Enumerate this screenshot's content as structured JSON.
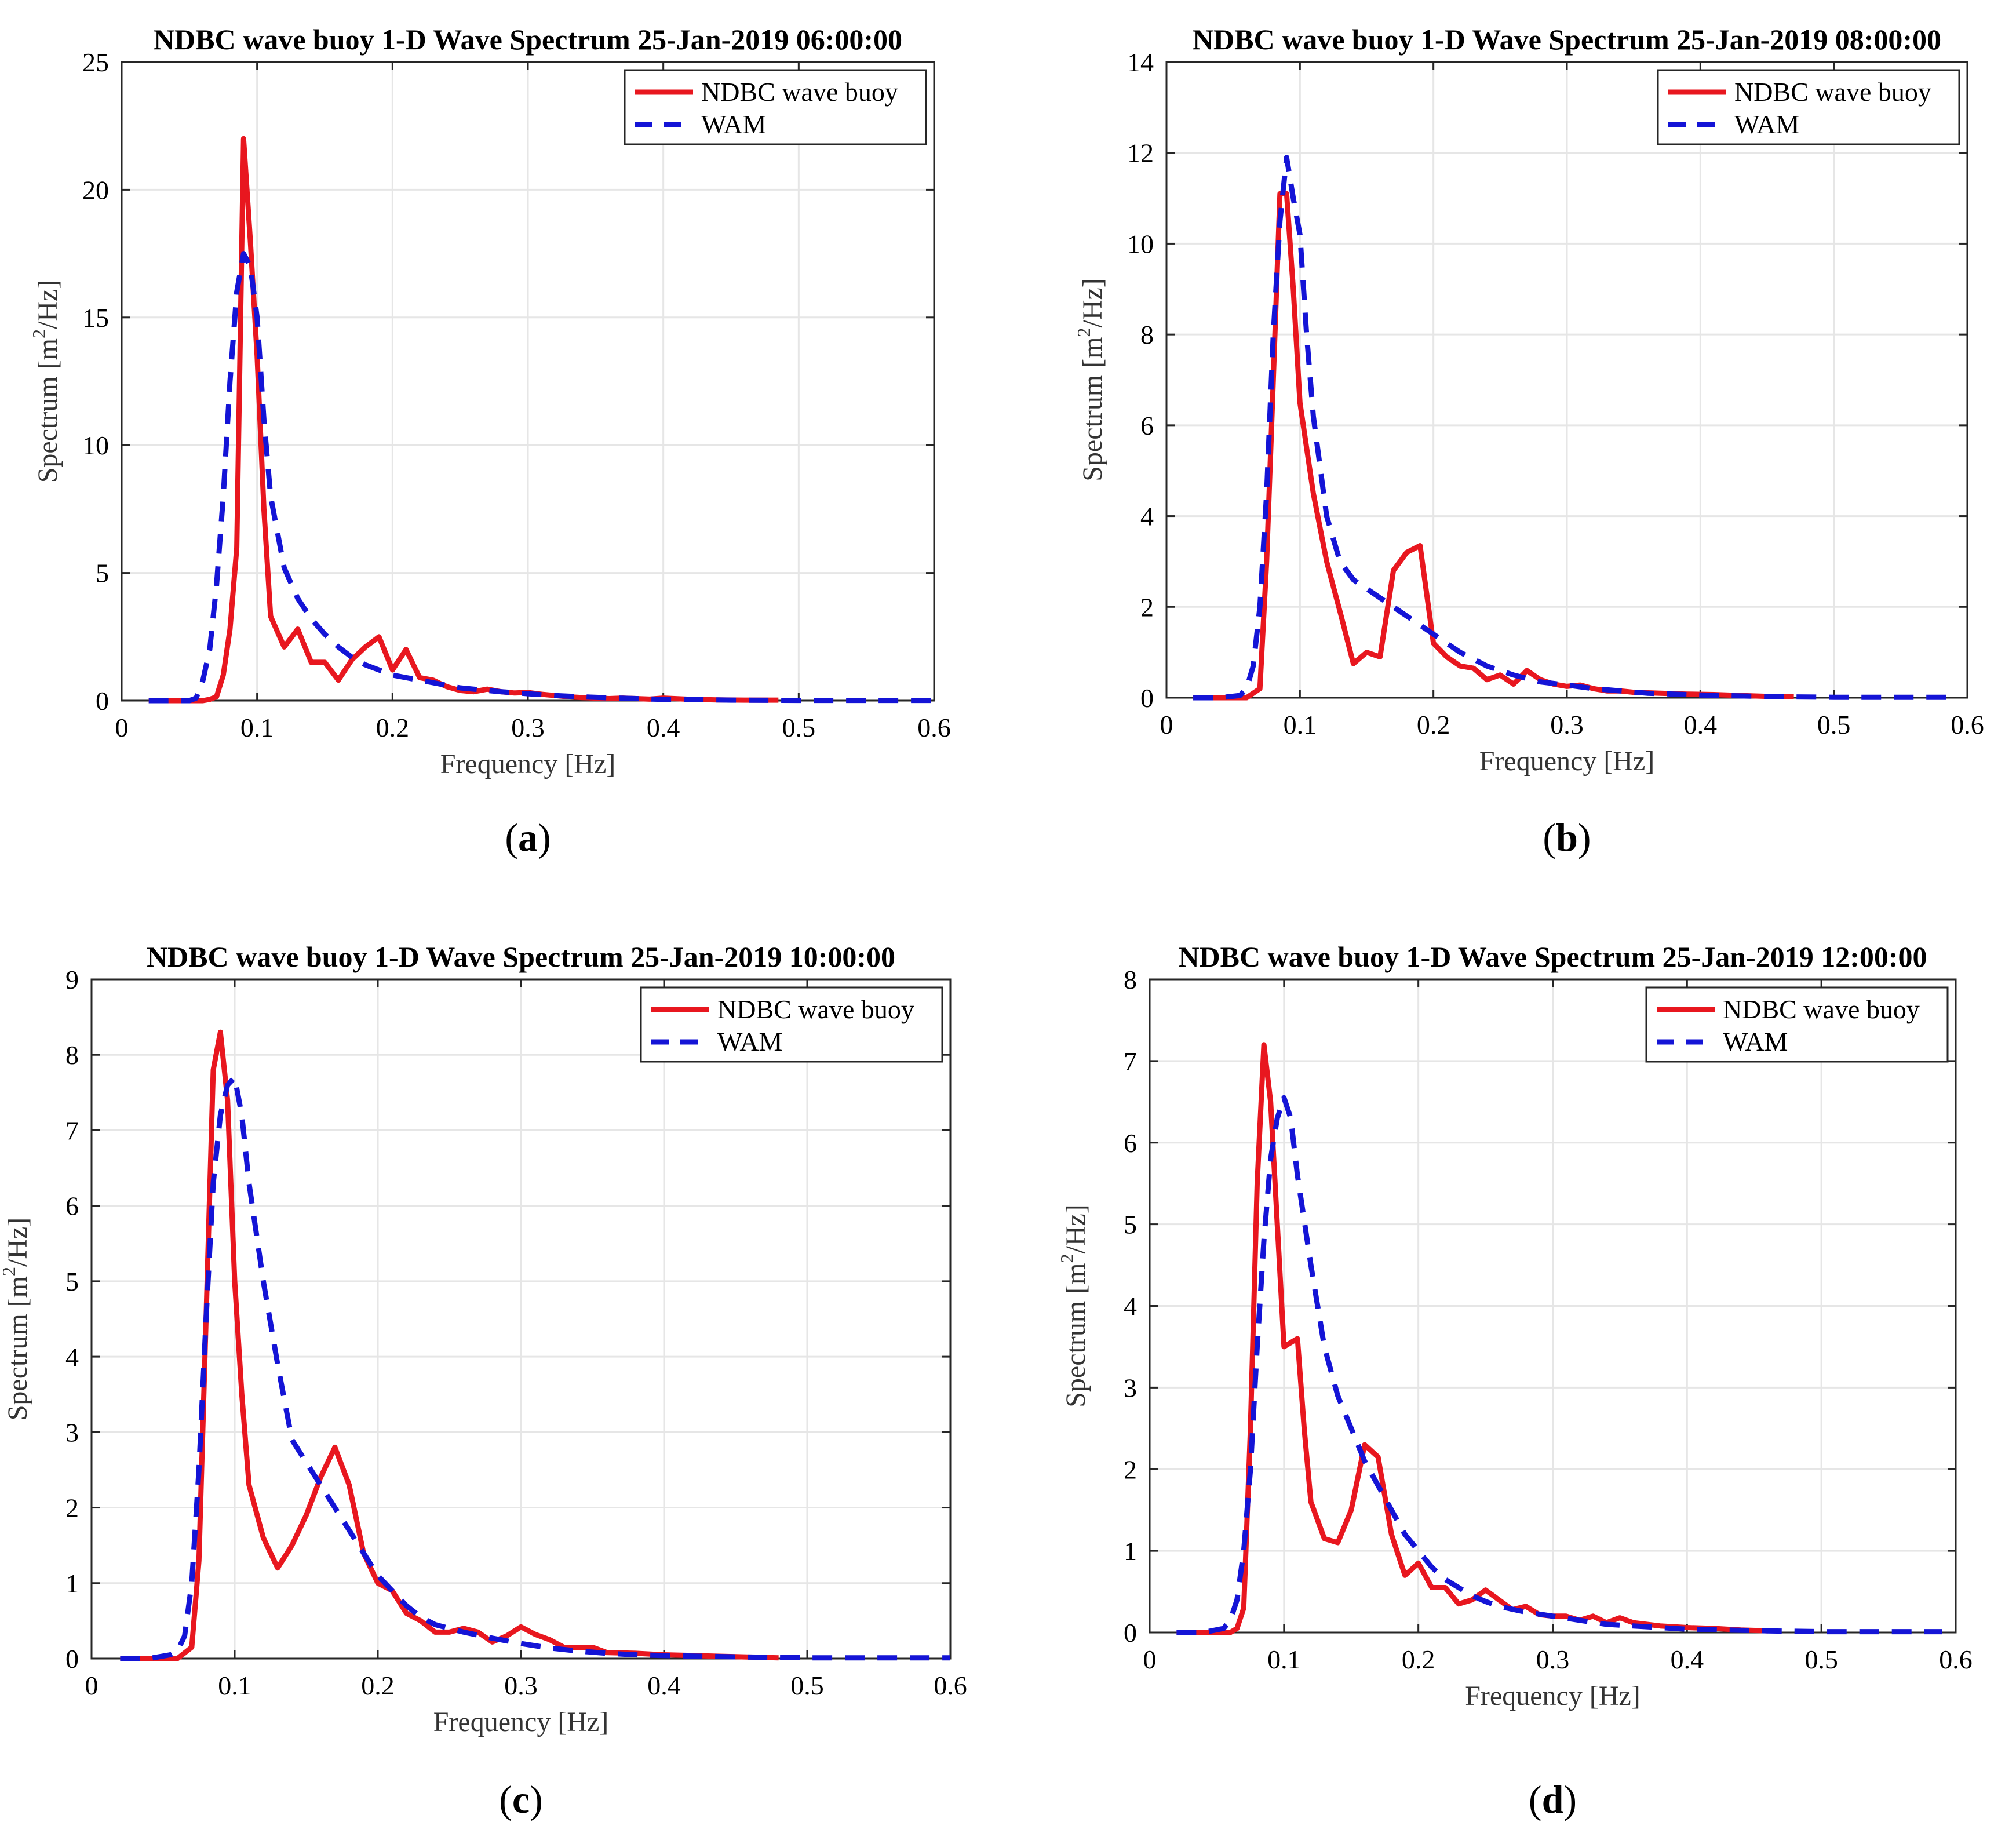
{
  "colors": {
    "buoy": "#e8171f",
    "wam": "#1414d6",
    "grid": "#e6e6e6",
    "axis": "#262626"
  },
  "chart_data": [
    {
      "type": "line",
      "panel_label": "a",
      "caption": "(a)",
      "title": "NDBC wave buoy 1-D Wave Spectrum 25-Jan-2019 06:00:00",
      "xlabel": "Frequency [Hz]",
      "ylabel": "Spectrum [m²/Hz]",
      "ylabel_base": "Spectrum [m",
      "ylabel_sup": "2",
      "ylabel_tail": "/Hz]",
      "xlim": [
        0,
        0.6
      ],
      "ylim": [
        0,
        25
      ],
      "xticks": [
        0,
        0.1,
        0.2,
        0.3,
        0.4,
        0.5,
        0.6
      ],
      "xtick_labels": [
        "0",
        "0.1",
        "0.2",
        "0.3",
        "0.4",
        "0.5",
        "0.6"
      ],
      "yticks": [
        0,
        5,
        10,
        15,
        20,
        25
      ],
      "ytick_labels": [
        "0",
        "5",
        "10",
        "15",
        "20",
        "25"
      ],
      "grid": true,
      "legend": "top-right",
      "series": [
        {
          "name": "NDBC wave buoy",
          "style": "solid",
          "x": [
            0.02,
            0.03,
            0.04,
            0.05,
            0.06,
            0.065,
            0.07,
            0.075,
            0.08,
            0.085,
            0.09,
            0.095,
            0.1,
            0.105,
            0.11,
            0.12,
            0.13,
            0.14,
            0.15,
            0.16,
            0.17,
            0.18,
            0.19,
            0.2,
            0.21,
            0.22,
            0.23,
            0.24,
            0.25,
            0.26,
            0.27,
            0.28,
            0.29,
            0.3,
            0.31,
            0.32,
            0.33,
            0.34,
            0.35,
            0.36,
            0.37,
            0.38,
            0.39,
            0.4,
            0.42,
            0.44,
            0.46,
            0.485
          ],
          "values": [
            0,
            0,
            0,
            0,
            0,
            0.05,
            0.15,
            1.0,
            2.8,
            6.0,
            22.0,
            18.0,
            13.5,
            7.5,
            3.3,
            2.1,
            2.8,
            1.5,
            1.5,
            0.8,
            1.6,
            2.1,
            2.5,
            1.2,
            2.0,
            0.9,
            0.8,
            0.55,
            0.4,
            0.35,
            0.45,
            0.35,
            0.3,
            0.32,
            0.25,
            0.2,
            0.15,
            0.12,
            0.1,
            0.08,
            0.1,
            0.08,
            0.06,
            0.1,
            0.05,
            0.03,
            0.02,
            0.02
          ]
        },
        {
          "name": "WAM",
          "style": "dashed",
          "x": [
            0.02,
            0.04,
            0.05,
            0.055,
            0.06,
            0.065,
            0.07,
            0.075,
            0.08,
            0.085,
            0.09,
            0.095,
            0.1,
            0.105,
            0.11,
            0.12,
            0.13,
            0.14,
            0.15,
            0.16,
            0.17,
            0.18,
            0.19,
            0.2,
            0.21,
            0.22,
            0.23,
            0.24,
            0.25,
            0.26,
            0.28,
            0.3,
            0.32,
            0.34,
            0.36,
            0.38,
            0.4,
            0.42,
            0.45,
            0.5,
            0.55,
            0.6
          ],
          "values": [
            0,
            0,
            0,
            0.1,
            0.8,
            2.0,
            4.5,
            8.0,
            12.5,
            16.0,
            17.5,
            17.0,
            15.0,
            11.0,
            8.0,
            5.2,
            4.0,
            3.2,
            2.6,
            2.1,
            1.7,
            1.4,
            1.2,
            1.0,
            0.9,
            0.8,
            0.7,
            0.6,
            0.5,
            0.45,
            0.35,
            0.27,
            0.2,
            0.15,
            0.11,
            0.08,
            0.05,
            0.04,
            0.02,
            0.01,
            0.01,
            0.01
          ]
        }
      ]
    },
    {
      "type": "line",
      "panel_label": "b",
      "caption": "(b)",
      "title": "NDBC wave buoy 1-D Wave Spectrum 25-Jan-2019 08:00:00",
      "xlabel": "Frequency [Hz]",
      "ylabel": "Spectrum [m²/Hz]",
      "ylabel_base": "Spectrum [m",
      "ylabel_sup": "2",
      "ylabel_tail": "/Hz]",
      "xlim": [
        0,
        0.6
      ],
      "ylim": [
        0,
        14
      ],
      "xticks": [
        0,
        0.1,
        0.2,
        0.3,
        0.4,
        0.5,
        0.6
      ],
      "xtick_labels": [
        "0",
        "0.1",
        "0.2",
        "0.3",
        "0.4",
        "0.5",
        "0.6"
      ],
      "yticks": [
        0,
        2,
        4,
        6,
        8,
        10,
        12,
        14
      ],
      "ytick_labels": [
        "0",
        "2",
        "4",
        "6",
        "8",
        "10",
        "12",
        "14"
      ],
      "grid": true,
      "legend": "top-right",
      "series": [
        {
          "name": "NDBC wave buoy",
          "style": "solid",
          "x": [
            0.02,
            0.04,
            0.06,
            0.07,
            0.075,
            0.08,
            0.085,
            0.09,
            0.095,
            0.1,
            0.105,
            0.11,
            0.12,
            0.13,
            0.14,
            0.15,
            0.16,
            0.17,
            0.18,
            0.19,
            0.2,
            0.21,
            0.22,
            0.23,
            0.24,
            0.25,
            0.26,
            0.27,
            0.28,
            0.29,
            0.3,
            0.31,
            0.32,
            0.33,
            0.34,
            0.35,
            0.37,
            0.39,
            0.41,
            0.43,
            0.45,
            0.47
          ],
          "values": [
            0,
            0,
            0,
            0.2,
            3.0,
            7.0,
            11.1,
            11.1,
            9.0,
            6.5,
            5.5,
            4.5,
            3.0,
            1.9,
            0.75,
            1.0,
            0.9,
            2.8,
            3.2,
            3.35,
            1.2,
            0.9,
            0.7,
            0.65,
            0.4,
            0.5,
            0.3,
            0.6,
            0.4,
            0.3,
            0.25,
            0.28,
            0.2,
            0.15,
            0.15,
            0.12,
            0.1,
            0.08,
            0.07,
            0.05,
            0.03,
            0.02
          ]
        },
        {
          "name": "WAM",
          "style": "dashed",
          "x": [
            0.02,
            0.04,
            0.055,
            0.06,
            0.065,
            0.07,
            0.075,
            0.08,
            0.085,
            0.09,
            0.095,
            0.1,
            0.105,
            0.11,
            0.12,
            0.13,
            0.14,
            0.15,
            0.16,
            0.17,
            0.18,
            0.19,
            0.2,
            0.21,
            0.22,
            0.23,
            0.24,
            0.25,
            0.26,
            0.28,
            0.3,
            0.32,
            0.34,
            0.36,
            0.38,
            0.4,
            0.43,
            0.46,
            0.5,
            0.55,
            0.59
          ],
          "values": [
            0,
            0,
            0.05,
            0.2,
            0.7,
            2.0,
            4.5,
            8.0,
            10.5,
            11.9,
            11.0,
            10.2,
            8.0,
            6.2,
            4.0,
            3.0,
            2.6,
            2.4,
            2.2,
            2.0,
            1.8,
            1.6,
            1.4,
            1.2,
            1.0,
            0.85,
            0.7,
            0.6,
            0.5,
            0.35,
            0.28,
            0.2,
            0.15,
            0.1,
            0.08,
            0.06,
            0.04,
            0.02,
            0.01,
            0.01,
            0.01
          ]
        }
      ]
    },
    {
      "type": "line",
      "panel_label": "c",
      "caption": "(c)",
      "title": "NDBC wave buoy 1-D Wave Spectrum 25-Jan-2019 10:00:00",
      "xlabel": "Frequency [Hz]",
      "ylabel": "Spectrum [m²/Hz]",
      "ylabel_base": "Spectrum [m",
      "ylabel_sup": "2",
      "ylabel_tail": "/Hz]",
      "xlim": [
        0,
        0.6
      ],
      "ylim": [
        0,
        9
      ],
      "xticks": [
        0,
        0.1,
        0.2,
        0.3,
        0.4,
        0.5,
        0.6
      ],
      "xtick_labels": [
        "0",
        "0.1",
        "0.2",
        "0.3",
        "0.4",
        "0.5",
        "0.6"
      ],
      "yticks": [
        0,
        1,
        2,
        3,
        4,
        5,
        6,
        7,
        8,
        9
      ],
      "ytick_labels": [
        "0",
        "1",
        "2",
        "3",
        "4",
        "5",
        "6",
        "7",
        "8",
        "9"
      ],
      "grid": true,
      "legend": "top-right",
      "series": [
        {
          "name": "NDBC wave buoy",
          "style": "solid",
          "x": [
            0.02,
            0.04,
            0.06,
            0.07,
            0.075,
            0.08,
            0.085,
            0.09,
            0.095,
            0.1,
            0.105,
            0.11,
            0.12,
            0.13,
            0.14,
            0.15,
            0.16,
            0.17,
            0.18,
            0.19,
            0.2,
            0.21,
            0.22,
            0.23,
            0.24,
            0.25,
            0.26,
            0.27,
            0.28,
            0.29,
            0.3,
            0.31,
            0.32,
            0.33,
            0.34,
            0.35,
            0.36,
            0.38,
            0.4,
            0.42,
            0.44,
            0.46,
            0.48
          ],
          "values": [
            0,
            0,
            0,
            0.15,
            1.3,
            4.5,
            7.8,
            8.3,
            7.4,
            5.0,
            3.5,
            2.3,
            1.6,
            1.2,
            1.5,
            1.9,
            2.4,
            2.8,
            2.3,
            1.4,
            1.0,
            0.9,
            0.6,
            0.5,
            0.35,
            0.35,
            0.4,
            0.35,
            0.22,
            0.3,
            0.42,
            0.32,
            0.25,
            0.15,
            0.15,
            0.15,
            0.08,
            0.07,
            0.05,
            0.04,
            0.03,
            0.02,
            0.01
          ]
        },
        {
          "name": "WAM",
          "style": "dashed",
          "x": [
            0.02,
            0.04,
            0.055,
            0.06,
            0.065,
            0.07,
            0.075,
            0.08,
            0.085,
            0.09,
            0.095,
            0.1,
            0.105,
            0.11,
            0.12,
            0.13,
            0.14,
            0.15,
            0.16,
            0.17,
            0.18,
            0.19,
            0.2,
            0.21,
            0.22,
            0.23,
            0.24,
            0.25,
            0.26,
            0.28,
            0.3,
            0.32,
            0.34,
            0.36,
            0.38,
            0.4,
            0.43,
            0.46,
            0.5,
            0.55,
            0.6
          ],
          "values": [
            0,
            0,
            0.05,
            0.1,
            0.3,
            1.0,
            2.5,
            4.5,
            6.3,
            7.2,
            7.6,
            7.7,
            7.2,
            6.3,
            5.0,
            3.9,
            2.9,
            2.6,
            2.3,
            2.0,
            1.7,
            1.4,
            1.1,
            0.9,
            0.7,
            0.55,
            0.45,
            0.4,
            0.35,
            0.27,
            0.2,
            0.14,
            0.1,
            0.07,
            0.05,
            0.04,
            0.03,
            0.02,
            0.01,
            0.01,
            0.01
          ]
        }
      ]
    },
    {
      "type": "line",
      "panel_label": "d",
      "caption": "(d)",
      "title": "NDBC wave buoy 1-D Wave Spectrum 25-Jan-2019 12:00:00",
      "xlabel": "Frequency [Hz]",
      "ylabel": "Spectrum [m²/Hz]",
      "ylabel_base": "Spectrum [m",
      "ylabel_sup": "2",
      "ylabel_tail": "/Hz]",
      "xlim": [
        0,
        0.6
      ],
      "ylim": [
        0,
        8
      ],
      "xticks": [
        0,
        0.1,
        0.2,
        0.3,
        0.4,
        0.5,
        0.6
      ],
      "xtick_labels": [
        "0",
        "0.1",
        "0.2",
        "0.3",
        "0.4",
        "0.5",
        "0.6"
      ],
      "yticks": [
        0,
        1,
        2,
        3,
        4,
        5,
        6,
        7,
        8
      ],
      "ytick_labels": [
        "0",
        "1",
        "2",
        "3",
        "4",
        "5",
        "6",
        "7",
        "8"
      ],
      "grid": true,
      "legend": "top-right",
      "series": [
        {
          "name": "NDBC wave buoy",
          "style": "solid",
          "x": [
            0.02,
            0.04,
            0.06,
            0.065,
            0.07,
            0.075,
            0.08,
            0.085,
            0.09,
            0.095,
            0.1,
            0.105,
            0.11,
            0.115,
            0.12,
            0.13,
            0.14,
            0.15,
            0.16,
            0.17,
            0.18,
            0.19,
            0.2,
            0.21,
            0.22,
            0.23,
            0.24,
            0.25,
            0.26,
            0.27,
            0.28,
            0.29,
            0.3,
            0.31,
            0.32,
            0.33,
            0.34,
            0.35,
            0.36,
            0.38,
            0.4,
            0.42,
            0.44,
            0.46
          ],
          "values": [
            0,
            0,
            0,
            0.05,
            0.3,
            2.5,
            5.5,
            7.2,
            6.5,
            5.0,
            3.5,
            3.55,
            3.6,
            2.5,
            1.6,
            1.15,
            1.1,
            1.5,
            2.3,
            2.15,
            1.2,
            0.7,
            0.85,
            0.55,
            0.55,
            0.35,
            0.4,
            0.52,
            0.4,
            0.28,
            0.32,
            0.22,
            0.2,
            0.2,
            0.15,
            0.2,
            0.12,
            0.18,
            0.12,
            0.08,
            0.06,
            0.05,
            0.03,
            0.02
          ]
        },
        {
          "name": "WAM",
          "style": "dashed",
          "x": [
            0.02,
            0.04,
            0.055,
            0.06,
            0.065,
            0.07,
            0.075,
            0.08,
            0.085,
            0.09,
            0.095,
            0.1,
            0.105,
            0.11,
            0.12,
            0.13,
            0.14,
            0.15,
            0.16,
            0.17,
            0.18,
            0.19,
            0.2,
            0.21,
            0.22,
            0.23,
            0.24,
            0.25,
            0.26,
            0.28,
            0.3,
            0.32,
            0.34,
            0.36,
            0.38,
            0.4,
            0.43,
            0.46,
            0.5,
            0.55,
            0.59
          ],
          "values": [
            0,
            0,
            0.05,
            0.15,
            0.4,
            1.0,
            2.0,
            3.5,
            4.8,
            5.8,
            6.3,
            6.55,
            6.3,
            5.6,
            4.5,
            3.5,
            2.9,
            2.5,
            2.1,
            1.8,
            1.5,
            1.2,
            1.0,
            0.8,
            0.65,
            0.55,
            0.45,
            0.38,
            0.32,
            0.25,
            0.2,
            0.15,
            0.1,
            0.08,
            0.06,
            0.04,
            0.03,
            0.02,
            0.01,
            0.01,
            0.01
          ]
        }
      ]
    }
  ]
}
